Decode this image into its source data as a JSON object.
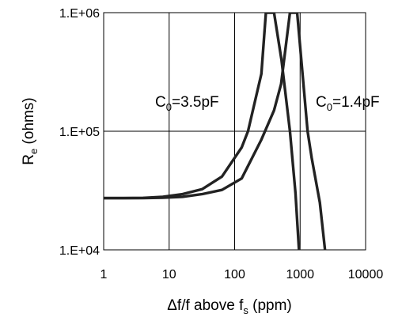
{
  "chart_data": {
    "type": "line",
    "x_scale": "log",
    "y_scale": "log",
    "xlim": [
      1,
      10000
    ],
    "ylim": [
      10000,
      1000000
    ],
    "x_ticks": [
      1,
      10,
      100,
      1000,
      10000
    ],
    "x_tick_labels": [
      "1",
      "10",
      "100",
      "1000",
      "10000"
    ],
    "y_ticks": [
      10000,
      100000,
      1000000
    ],
    "y_tick_labels": [
      "1.E+04",
      "1.E+05",
      "1.E+06"
    ],
    "ylabel": {
      "main": "R",
      "sub": "e",
      "rest": " (ohms)"
    },
    "xlabel": {
      "pre": "Δf/f above f",
      "sub": "s",
      "rest": " (ppm)"
    },
    "grid": true,
    "series": [
      {
        "annotation": {
          "main": "C",
          "sub": "0",
          "rest": "=3.5pF"
        },
        "x": [
          1,
          2,
          4,
          8,
          16,
          32,
          64,
          128,
          160,
          256,
          300,
          400,
          520,
          700,
          850,
          960
        ],
        "y": [
          27300,
          27300,
          27400,
          28000,
          29500,
          32500,
          41500,
          73000,
          100000,
          305000,
          1000000,
          1000000,
          400000,
          100000,
          30000,
          10000
        ]
      },
      {
        "annotation": {
          "main": "C",
          "sub": "0",
          "rest": "=1.4pF"
        },
        "x": [
          1,
          2,
          4,
          8,
          16,
          32,
          64,
          128,
          256,
          400,
          512,
          700,
          900,
          1300,
          1500,
          2000,
          2400
        ],
        "y": [
          27300,
          27300,
          27300,
          27500,
          28000,
          29500,
          32000,
          40000,
          85000,
          150000,
          250000,
          1000000,
          1000000,
          100000,
          60000,
          25000,
          10000
        ]
      }
    ]
  }
}
